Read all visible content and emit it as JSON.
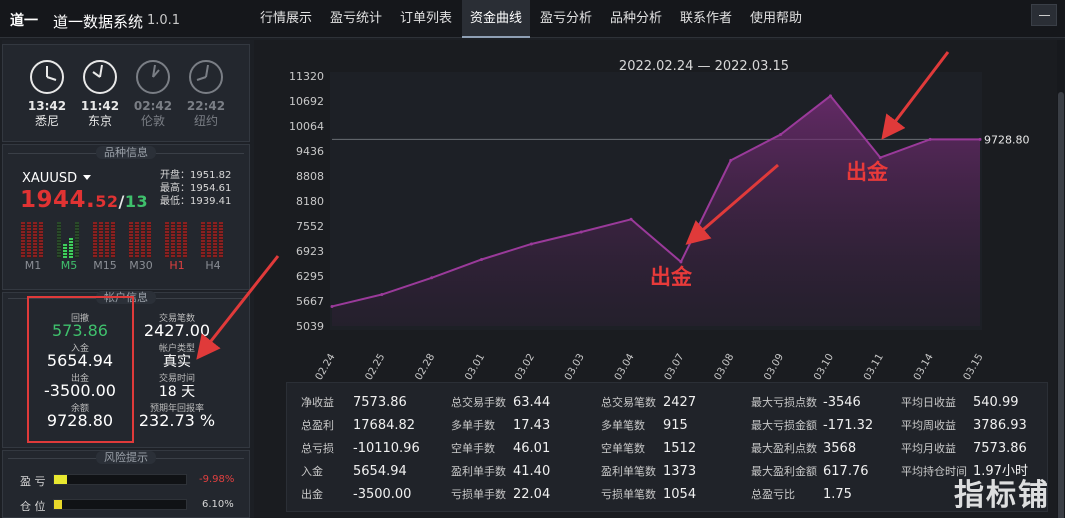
{
  "app": {
    "title": "道一数据系统",
    "version": "1.0.1",
    "logo_text": "道一"
  },
  "nav": [
    {
      "label": "行情展示"
    },
    {
      "label": "盈亏统计"
    },
    {
      "label": "订单列表"
    },
    {
      "label": "资金曲线",
      "active": true
    },
    {
      "label": "盈亏分析"
    },
    {
      "label": "品种分析"
    },
    {
      "label": "联系作者"
    },
    {
      "label": "使用帮助"
    }
  ],
  "window": {
    "minimize_icon": "minimize-icon"
  },
  "clocks": [
    {
      "time": "13:42",
      "city": "悉尼",
      "active": true
    },
    {
      "time": "11:42",
      "city": "东京",
      "active": true
    },
    {
      "time": "02:42",
      "city": "伦敦",
      "active": false
    },
    {
      "time": "22:42",
      "city": "纽约",
      "active": false
    }
  ],
  "symbol_section": {
    "heading": "品种信息",
    "symbol": "XAUUSD",
    "price_main": "1944.",
    "price_frac": "52",
    "slash": "/",
    "price_ask": "13",
    "open": "开盘：1951.82",
    "high": "最高：1954.61",
    "low": "最低：1939.41",
    "timeframes": [
      {
        "label": "M1",
        "state": "red"
      },
      {
        "label": "M5",
        "state": "green"
      },
      {
        "label": "M15",
        "state": "red"
      },
      {
        "label": "M30",
        "state": "red"
      },
      {
        "label": "H1",
        "state": "red-active"
      },
      {
        "label": "H4",
        "state": "red"
      }
    ]
  },
  "account_section": {
    "heading": "帐户信息",
    "drawdown_label": "回撤",
    "drawdown": "573.86",
    "deposit_label": "入金",
    "deposit": "5654.94",
    "withdraw_label": "出金",
    "withdraw": "-3500.00",
    "balance_label": "余额",
    "balance": "9728.80",
    "trades_label": "交易笔数",
    "trades": "2427.00",
    "acct_type_label": "帐户类型",
    "acct_type": "真实",
    "trade_time_label": "交易时间",
    "trade_time": "18 天",
    "annual_label": "预期年回报率",
    "annual": "232.73 %"
  },
  "risk_section": {
    "heading": "风险提示",
    "rows": [
      {
        "label": "盈 亏",
        "fill": 0.0998,
        "value": "-9.98%",
        "color": "#e8e830",
        "value_color": "#e04040"
      },
      {
        "label": "仓 位",
        "fill": 0.061,
        "value": "6.10%",
        "color": "#e8d82a",
        "value_color": "#d8d8d8"
      }
    ]
  },
  "annotations": {
    "out1": "出金",
    "out2": "出金",
    "watermark": "指标铺"
  },
  "chart_data": {
    "type": "area",
    "title": "2022.02.24 — 2022.03.15",
    "x": [
      "02.24",
      "02.25",
      "02.28",
      "03.01",
      "03.02",
      "03.03",
      "03.04",
      "03.07",
      "03.08",
      "03.09",
      "03.10",
      "03.11",
      "03.14",
      "03.15"
    ],
    "y": [
      5530,
      5830,
      6250,
      6710,
      7100,
      7400,
      7720,
      6650,
      9200,
      9850,
      10820,
      9270,
      9728.8,
      9728.8
    ],
    "end_label": "9728.80",
    "reference_line": 9728.8,
    "yticks": [
      5039,
      5667,
      6295,
      6923,
      7552,
      8180,
      8808,
      9436,
      10064,
      10692,
      11320
    ],
    "ylim": [
      5039,
      11320
    ],
    "line_color": "#9a3a9a",
    "grid": false
  },
  "stats": [
    [
      {
        "k": "净收益",
        "v": "7573.86"
      },
      {
        "k": "总盈利",
        "v": "17684.82"
      },
      {
        "k": "总亏损",
        "v": "-10110.96"
      },
      {
        "k": "入金",
        "v": "5654.94"
      },
      {
        "k": "出金",
        "v": "-3500.00"
      }
    ],
    [
      {
        "k": "总交易手数",
        "v": "63.44"
      },
      {
        "k": "多单手数",
        "v": "17.43"
      },
      {
        "k": "空单手数",
        "v": "46.01"
      },
      {
        "k": "盈利单手数",
        "v": "41.40"
      },
      {
        "k": "亏损单手数",
        "v": "22.04"
      }
    ],
    [
      {
        "k": "总交易笔数",
        "v": "2427"
      },
      {
        "k": "多单笔数",
        "v": "915"
      },
      {
        "k": "空单笔数",
        "v": "1512"
      },
      {
        "k": "盈利单笔数",
        "v": "1373"
      },
      {
        "k": "亏损单笔数",
        "v": "1054"
      }
    ],
    [
      {
        "k": "最大亏损点数",
        "v": "-3546"
      },
      {
        "k": "最大亏损金额",
        "v": "-171.32"
      },
      {
        "k": "最大盈利点数",
        "v": "3568"
      },
      {
        "k": "最大盈利金额",
        "v": "617.76"
      },
      {
        "k": "总盈亏比",
        "v": "1.75"
      }
    ],
    [
      {
        "k": "平均日收益",
        "v": "540.99"
      },
      {
        "k": "平均周收益",
        "v": "3786.93"
      },
      {
        "k": "平均月收益",
        "v": "7573.86"
      },
      {
        "k": "平均持仓时间",
        "v": "1.97小时"
      }
    ]
  ]
}
